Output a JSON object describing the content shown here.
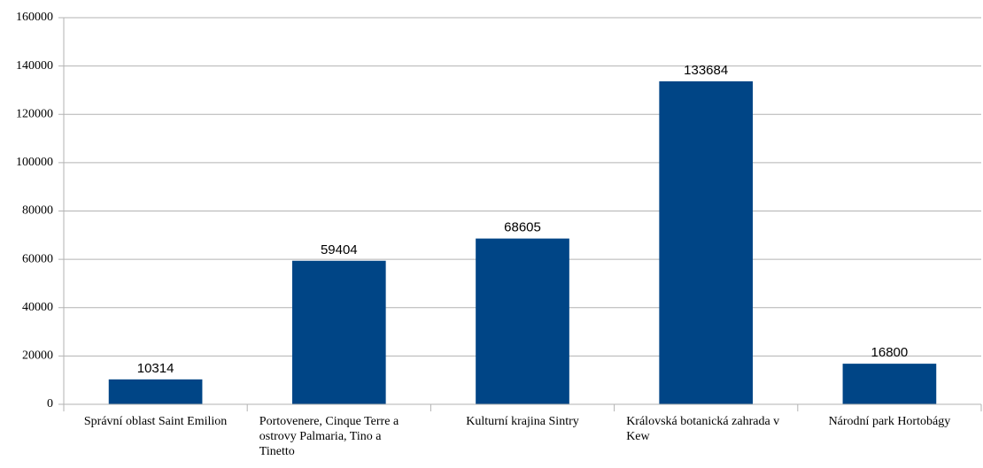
{
  "chart_data": {
    "type": "bar",
    "categories": [
      "Správní oblast Saint Emilion",
      "Portovenere, Cinque Terre a ostrovy Palmaria, Tino a Tinetto",
      "Kulturní krajina Sintry",
      "Královská botanická zahrada v Kew",
      "Národní park Hortobágy"
    ],
    "values": [
      10314,
      59404,
      68605,
      133684,
      16800
    ],
    "color": "#004586",
    "ylim": [
      0,
      160000
    ],
    "yticks": [
      0,
      20000,
      40000,
      60000,
      80000,
      100000,
      120000,
      140000,
      160000
    ],
    "grid": true
  }
}
